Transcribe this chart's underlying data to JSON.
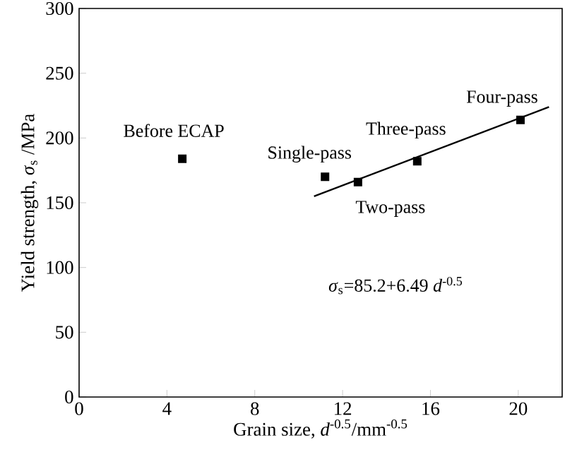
{
  "chart_data": {
    "type": "scatter",
    "xlabel": "Grain size, *d*$^{-0.5}$/mm$^{-0.5}$",
    "ylabel": "Yield strength, *σ*$_{s}$ /MPa",
    "xlim": [
      0,
      22
    ],
    "ylim": [
      0,
      300
    ],
    "xticks": [
      0,
      4,
      8,
      12,
      16,
      20
    ],
    "yticks": [
      0,
      50,
      100,
      150,
      200,
      250,
      300
    ],
    "grid": false,
    "series": [
      {
        "color": "#000000",
        "marker": "square",
        "x": [
          4.7,
          11.2,
          12.7,
          15.4,
          20.1
        ],
        "values": [
          184,
          170,
          166,
          182,
          214
        ]
      },
      {
        "type": "line",
        "color": "#000000",
        "marker": "none",
        "line_style": "solid",
        "x": [
          10.7,
          21.4
        ],
        "values": [
          155,
          224
        ]
      }
    ],
    "annotations": [
      {
        "text": "Before ECAP",
        "x": 4.7,
        "y": 184
      },
      {
        "text": "Single-pass",
        "x": 11.2,
        "y": 170
      },
      {
        "text": "Two-pass",
        "x": 12.7,
        "y": 166
      },
      {
        "text": "Three-pass",
        "x": 15.4,
        "y": 182
      },
      {
        "text": "Four-pass",
        "x": 20.1,
        "y": 214
      },
      "*σ*$_{s}$=85.2+6.49 *d*$^{-0.5}$"
    ]
  }
}
